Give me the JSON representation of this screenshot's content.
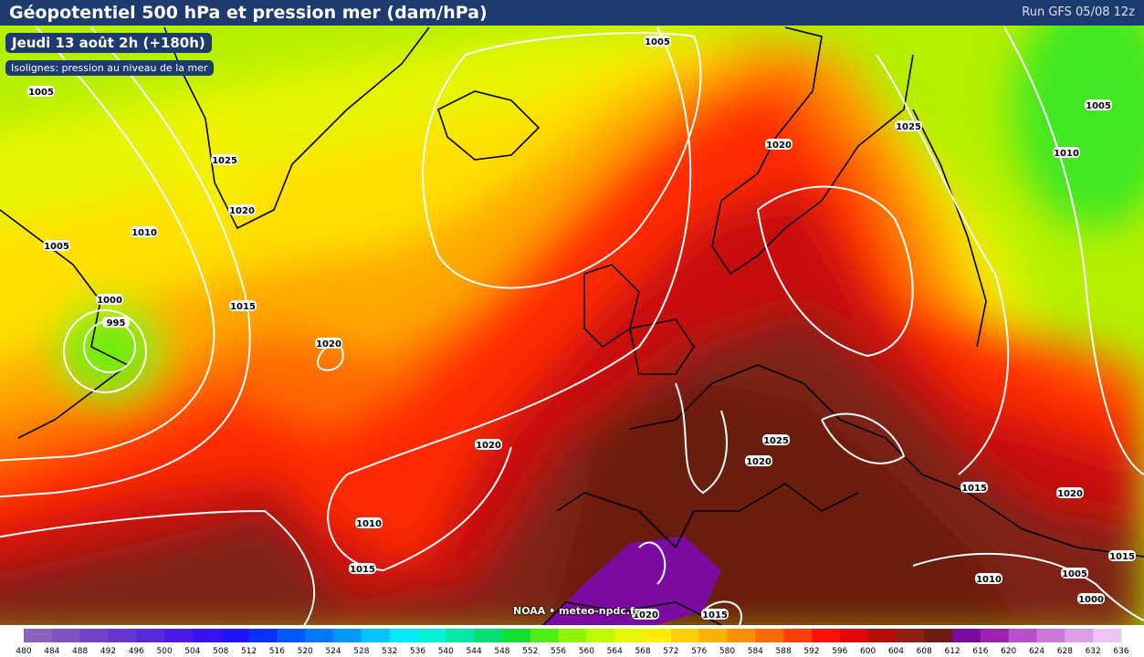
{
  "header": {
    "title": "Géopotentiel 500 hPa et pression mer (dam/hPa)",
    "run": "Run GFS 05/08 12z"
  },
  "date_label": "Jeudi 13 août 2h (+180h)",
  "isolines_label": "Isolignes: pression au niveau de la mer",
  "credit": "NOAA • meteo-npdc.fr",
  "isobar_labels": [
    1005,
    1005,
    1005,
    1010,
    1025,
    1020,
    1025,
    1020,
    1010,
    1005,
    1000,
    995,
    1015,
    1020,
    1020,
    1025,
    1020,
    1015,
    1020,
    1010,
    1015,
    1015,
    1005,
    1010,
    1000,
    1015,
    1020
  ],
  "colorbar": {
    "ticks": [
      480,
      484,
      488,
      492,
      496,
      500,
      504,
      508,
      512,
      516,
      520,
      524,
      528,
      532,
      536,
      540,
      544,
      548,
      552,
      556,
      560,
      564,
      568,
      572,
      576,
      580,
      584,
      588,
      592,
      596,
      600,
      604,
      608,
      612,
      616,
      620,
      624,
      628,
      632,
      636
    ],
    "colors": [
      "#8a64b8",
      "#7d55c0",
      "#7046c8",
      "#6437d2",
      "#5828dc",
      "#4c1ae6",
      "#3d10f2",
      "#2212ff",
      "#0a30ff",
      "#0058ff",
      "#0078ff",
      "#0098ff",
      "#00c4ff",
      "#00eaff",
      "#00f0d8",
      "#00e8a8",
      "#00e070",
      "#10e030",
      "#50ee10",
      "#90f400",
      "#c0f800",
      "#e4f800",
      "#ffee00",
      "#ffd000",
      "#ffb000",
      "#ff9000",
      "#ff6a00",
      "#ff4000",
      "#ff1000",
      "#e00808",
      "#b80e0e",
      "#902014",
      "#6e1c12",
      "#7a0aa0",
      "#a020b4",
      "#b850cc",
      "#cc78da",
      "#dc9ee6",
      "#ecc4f2"
    ]
  }
}
